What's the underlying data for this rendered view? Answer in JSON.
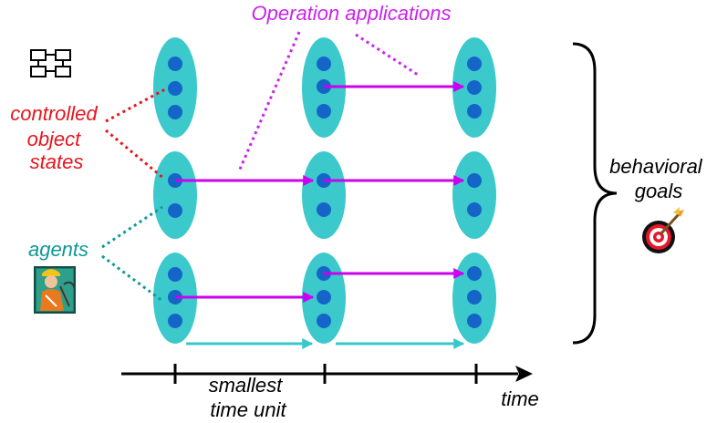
{
  "labels": {
    "operation_applications": "Operation applications",
    "controlled_object_states": [
      "controlled",
      "object",
      "states"
    ],
    "agents": "agents",
    "behavioral_goals": [
      "behavioral",
      "goals"
    ],
    "smallest_time_unit": [
      "smallest",
      "time unit"
    ],
    "time": "time"
  },
  "icons": {
    "state_machine": "state-machine-icon",
    "agent_worker": "worker-agent-icon",
    "goal_target": "target-dartboard-icon"
  },
  "colors": {
    "ellipse_fill": "#3cc9cc",
    "dot": "#1565c8",
    "operation_arrow": "#cc00ee",
    "operation_label": "#cc22ee",
    "states_label": "#e8141c",
    "agents_label": "#0f9898",
    "agent_arrow": "#37c8cc",
    "axis": "#000000"
  }
}
